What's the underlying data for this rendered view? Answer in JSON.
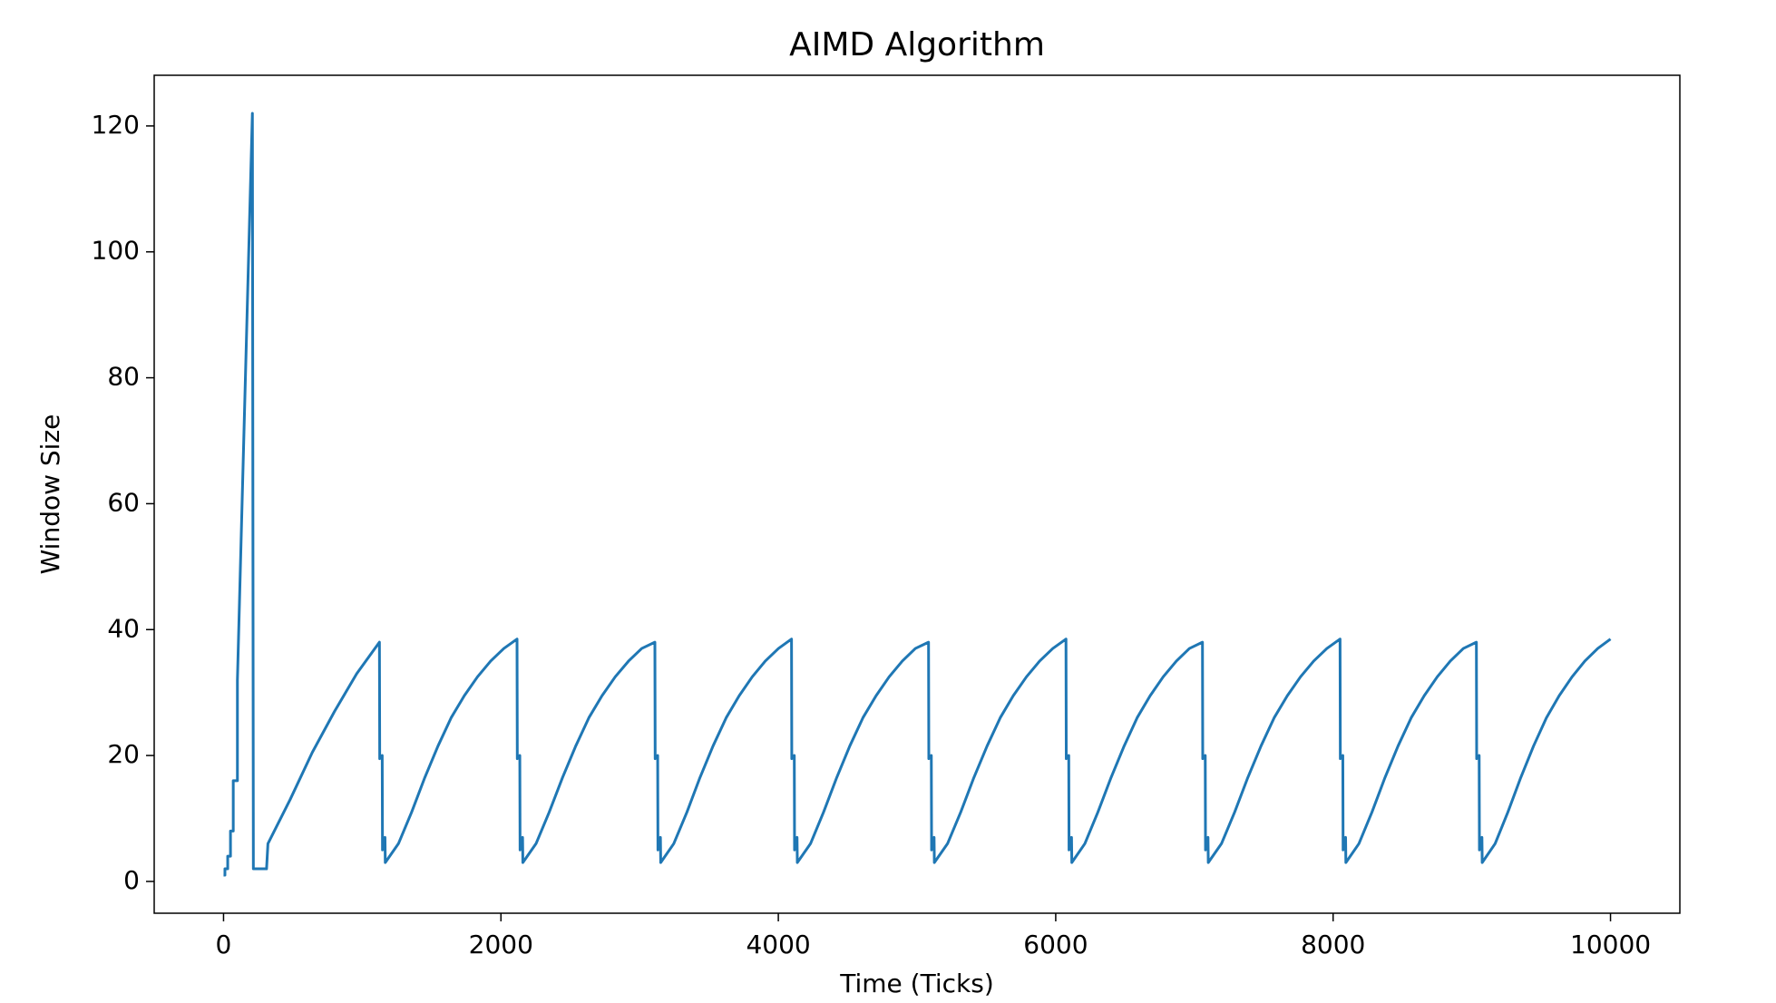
{
  "chart_data": {
    "type": "line",
    "title": "AIMD Algorithm",
    "x_label": "Time (Ticks)",
    "y_label": "Window Size",
    "x": [
      0,
      10,
      10,
      30,
      30,
      50,
      50,
      70,
      70,
      100,
      100,
      208,
      215,
      310,
      320,
      480,
      640,
      800,
      960,
      1124,
      1126,
      1144,
      1146,
      1164,
      1166,
      1261,
      1356,
      1451,
      1546,
      1641,
      1736,
      1831,
      1926,
      2021,
      2116,
      2118,
      2136,
      2138,
      2156,
      2158,
      2253,
      2348,
      2444,
      2539,
      2634,
      2729,
      2824,
      2920,
      3015,
      3110,
      3112,
      3130,
      3132,
      3150,
      3152,
      3246,
      3341,
      3435,
      3529,
      3624,
      3718,
      3812,
      3906,
      4001,
      4095,
      4097,
      4115,
      4117,
      4135,
      4137,
      4232,
      4326,
      4421,
      4515,
      4610,
      4705,
      4799,
      4894,
      4988,
      5083,
      5085,
      5103,
      5105,
      5123,
      5125,
      5220,
      5315,
      5410,
      5505,
      5600,
      5694,
      5789,
      5884,
      5979,
      6074,
      6076,
      6094,
      6096,
      6114,
      6116,
      6210,
      6304,
      6399,
      6493,
      6587,
      6681,
      6775,
      6870,
      6964,
      7058,
      7060,
      7078,
      7080,
      7098,
      7100,
      7195,
      7290,
      7385,
      7480,
      7575,
      7670,
      7765,
      7860,
      7955,
      8050,
      8052,
      8070,
      8072,
      8090,
      8092,
      8186,
      8280,
      8374,
      8468,
      8563,
      8657,
      8751,
      8845,
      8939,
      9033,
      9035,
      9053,
      9055,
      9073,
      9075,
      9168,
      9260,
      9353,
      9445,
      9538,
      9630,
      9723,
      9815,
      9908,
      10000
    ],
    "series": [
      {
        "color": "#1f77b4",
        "values": [
          1,
          1,
          2,
          2,
          4,
          4,
          8,
          8,
          16,
          16,
          32,
          122,
          2,
          2,
          6,
          13,
          20.5,
          27,
          33,
          38,
          19.5,
          20,
          5,
          7,
          3,
          6,
          11,
          16.5,
          21.5,
          26,
          29.5,
          32.5,
          35,
          37,
          38.5,
          19.5,
          20,
          5,
          7,
          3,
          6,
          11,
          16.5,
          21.5,
          26,
          29.5,
          32.5,
          35,
          37,
          38,
          19.5,
          20,
          5,
          7,
          3,
          6,
          11,
          16.5,
          21.5,
          26,
          29.5,
          32.5,
          35,
          37,
          38.5,
          19.5,
          20,
          5,
          7,
          3,
          6,
          11,
          16.5,
          21.5,
          26,
          29.5,
          32.5,
          35,
          37,
          38,
          19.5,
          20,
          5,
          7,
          3,
          6,
          11,
          16.5,
          21.5,
          26,
          29.5,
          32.5,
          35,
          37,
          38.5,
          19.5,
          20,
          5,
          7,
          3,
          6,
          11,
          16.5,
          21.5,
          26,
          29.5,
          32.5,
          35,
          37,
          38,
          19.5,
          20,
          5,
          7,
          3,
          6,
          11,
          16.5,
          21.5,
          26,
          29.5,
          32.5,
          35,
          37,
          38.5,
          19.5,
          20,
          5,
          7,
          3,
          6,
          11,
          16.5,
          21.5,
          26,
          29.5,
          32.5,
          35,
          37,
          38,
          19.5,
          20,
          5,
          7,
          3,
          6,
          11,
          16.5,
          21.5,
          26,
          29.5,
          32.5,
          35,
          37,
          38.5
        ]
      }
    ],
    "xlim": [
      -500,
      10500
    ],
    "xticks": [
      0,
      2000,
      4000,
      6000,
      8000,
      10000
    ],
    "ylim": [
      -5.05,
      128.05
    ],
    "yticks": [
      0,
      20,
      40,
      60,
      80,
      100,
      120
    ],
    "grid": false
  }
}
